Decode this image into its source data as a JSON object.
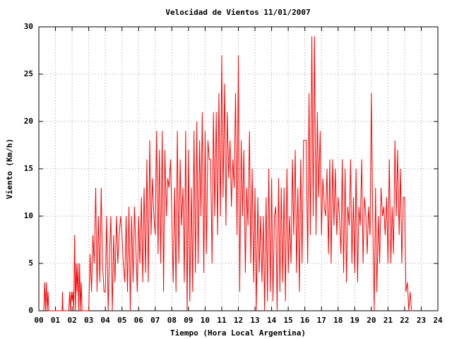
{
  "chart_data": {
    "type": "line",
    "title": "Velocidad de Vientos 11/01/2007",
    "xlabel": "Tiempo (Hora Local Argentina)",
    "ylabel": "Viento (Km/h)",
    "color": "#ff0000",
    "grid": true,
    "xlim": [
      0,
      24
    ],
    "ylim": [
      0,
      30
    ],
    "yticks": [
      0,
      5,
      10,
      15,
      20,
      25,
      30
    ],
    "xticks": [
      {
        "value": 0,
        "label": "00"
      },
      {
        "value": 1,
        "label": "01"
      },
      {
        "value": 2,
        "label": "02"
      },
      {
        "value": 3,
        "label": "03"
      },
      {
        "value": 4,
        "label": "04"
      },
      {
        "value": 5,
        "label": "05"
      },
      {
        "value": 6,
        "label": "06"
      },
      {
        "value": 7,
        "label": "07"
      },
      {
        "value": 8,
        "label": "08"
      },
      {
        "value": 9,
        "label": "09"
      },
      {
        "value": 10,
        "label": "10"
      },
      {
        "value": 11,
        "label": "11"
      },
      {
        "value": 12,
        "label": "12"
      },
      {
        "value": 13,
        "label": "13"
      },
      {
        "value": 14,
        "label": "14"
      },
      {
        "value": 15,
        "label": "15"
      },
      {
        "value": 16,
        "label": "16"
      },
      {
        "value": 17,
        "label": "17"
      },
      {
        "value": 18,
        "label": "18"
      },
      {
        "value": 19,
        "label": "19"
      },
      {
        "value": 20,
        "label": "20"
      },
      {
        "value": 21,
        "label": "21"
      },
      {
        "value": 22,
        "label": "22"
      },
      {
        "value": 23,
        "label": "23"
      },
      {
        "value": 24,
        "label": "24"
      }
    ],
    "x": [
      0.3,
      0.35,
      0.4,
      0.45,
      0.5,
      0.55,
      0.6,
      1.4,
      1.42,
      1.45,
      1.8,
      1.85,
      1.9,
      1.95,
      2.0,
      2.05,
      2.1,
      2.15,
      2.2,
      2.25,
      2.3,
      2.35,
      2.4,
      2.45,
      2.5,
      2.55,
      2.6,
      3.0,
      3.08,
      3.17,
      3.25,
      3.33,
      3.42,
      3.5,
      3.58,
      3.67,
      3.75,
      3.83,
      3.92,
      4.0,
      4.08,
      4.17,
      4.25,
      4.33,
      4.42,
      4.5,
      4.58,
      4.67,
      4.75,
      4.83,
      4.92,
      5.0,
      5.08,
      5.17,
      5.25,
      5.33,
      5.42,
      5.5,
      5.58,
      5.67,
      5.75,
      5.83,
      5.92,
      6.0,
      6.08,
      6.17,
      6.25,
      6.33,
      6.42,
      6.5,
      6.58,
      6.67,
      6.75,
      6.83,
      6.92,
      7.0,
      7.08,
      7.17,
      7.25,
      7.33,
      7.42,
      7.5,
      7.58,
      7.67,
      7.75,
      7.83,
      7.92,
      8.0,
      8.08,
      8.17,
      8.25,
      8.33,
      8.42,
      8.5,
      8.58,
      8.67,
      8.75,
      8.83,
      8.92,
      9.0,
      9.08,
      9.17,
      9.25,
      9.33,
      9.42,
      9.5,
      9.58,
      9.67,
      9.75,
      9.83,
      9.92,
      10.0,
      10.08,
      10.17,
      10.25,
      10.33,
      10.42,
      10.5,
      10.58,
      10.67,
      10.75,
      10.83,
      10.92,
      11.0,
      11.08,
      11.17,
      11.25,
      11.33,
      11.42,
      11.5,
      11.58,
      11.67,
      11.75,
      11.83,
      11.92,
      12.0,
      12.08,
      12.17,
      12.25,
      12.33,
      12.42,
      12.5,
      12.58,
      12.67,
      12.75,
      12.83,
      12.92,
      13.0,
      13.08,
      13.17,
      13.25,
      13.33,
      13.42,
      13.5,
      13.58,
      13.67,
      13.75,
      13.83,
      13.92,
      14.0,
      14.08,
      14.17,
      14.25,
      14.33,
      14.42,
      14.5,
      14.58,
      14.67,
      14.75,
      14.83,
      14.92,
      15.0,
      15.08,
      15.17,
      15.25,
      15.33,
      15.42,
      15.5,
      15.58,
      15.67,
      15.75,
      15.83,
      15.92,
      16.0,
      16.08,
      16.17,
      16.25,
      16.33,
      16.42,
      16.5,
      16.58,
      16.67,
      16.75,
      16.83,
      16.92,
      17.0,
      17.08,
      17.17,
      17.25,
      17.33,
      17.42,
      17.5,
      17.58,
      17.67,
      17.75,
      17.83,
      17.92,
      18.0,
      18.08,
      18.17,
      18.25,
      18.33,
      18.42,
      18.5,
      18.58,
      18.67,
      18.75,
      18.83,
      18.92,
      19.0,
      19.08,
      19.17,
      19.25,
      19.33,
      19.42,
      19.5,
      19.58,
      19.67,
      19.75,
      19.83,
      19.92,
      20.0,
      20.08,
      20.17,
      20.25,
      20.33,
      20.42,
      20.5,
      20.58,
      20.67,
      20.75,
      20.83,
      20.92,
      21.0,
      21.08,
      21.17,
      21.25,
      21.33,
      21.42,
      21.5,
      21.58,
      21.67,
      21.75,
      21.83,
      21.92,
      22.0,
      22.08,
      22.17,
      22.25,
      22.33,
      22.42,
      22.5
    ],
    "values": [
      0,
      3,
      0,
      3,
      0,
      2,
      0,
      0,
      2,
      0,
      0,
      2,
      0,
      2,
      1,
      2,
      0,
      8,
      0,
      5,
      2,
      5,
      0,
      5,
      0,
      3,
      0,
      0,
      6,
      2,
      8,
      5,
      13,
      2,
      10,
      3,
      13,
      5,
      2,
      2,
      10,
      0,
      6,
      10,
      0,
      8,
      3,
      10,
      5,
      8,
      10,
      8,
      5,
      3,
      10,
      2,
      11,
      0,
      10,
      3,
      11,
      7,
      2,
      10,
      5,
      12,
      3,
      13,
      4,
      16,
      3,
      18,
      8,
      14,
      10,
      8,
      19,
      6,
      17,
      5,
      19,
      2,
      17,
      10,
      14,
      13,
      16,
      10,
      3,
      13,
      2,
      19,
      5,
      16,
      9,
      13,
      3,
      19,
      0,
      17,
      1,
      13,
      2,
      19,
      4,
      20,
      5,
      18,
      10,
      21,
      4,
      19,
      6,
      18,
      16,
      16,
      5,
      21,
      10,
      21,
      8,
      23,
      10,
      27,
      12,
      24,
      9,
      21,
      14,
      18,
      11,
      16,
      13,
      23,
      8,
      27,
      2,
      18,
      10,
      17,
      4,
      13,
      9,
      19,
      5,
      15,
      3,
      13,
      0,
      12,
      4,
      10,
      3,
      10,
      0,
      12,
      1,
      15,
      2,
      14,
      1,
      10,
      11,
      0,
      14,
      2,
      13,
      3,
      13,
      1,
      15,
      4,
      10,
      5,
      16,
      8,
      17,
      4,
      13,
      2,
      16,
      5,
      18,
      18,
      18,
      5,
      23,
      8,
      29,
      10,
      29,
      8,
      21,
      12,
      19,
      8,
      14,
      11,
      10,
      15,
      6,
      16,
      5,
      16,
      9,
      15,
      8,
      12,
      10,
      6,
      16,
      4,
      15,
      3,
      11,
      9,
      16,
      5,
      12,
      4,
      15,
      3,
      11,
      9,
      16,
      5,
      12,
      10,
      6,
      11,
      8,
      23,
      10,
      0,
      13,
      2,
      10,
      5,
      13,
      10,
      11,
      8,
      12,
      5,
      16,
      5,
      11,
      6,
      18,
      10,
      17,
      8,
      15,
      5,
      12,
      12,
      2,
      3,
      0,
      2,
      0,
      0
    ]
  }
}
